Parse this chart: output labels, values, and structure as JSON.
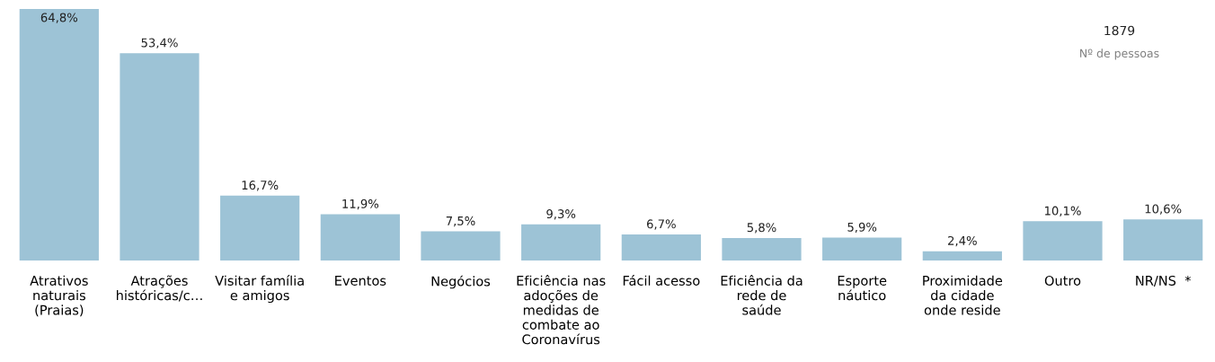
{
  "chart_data": {
    "type": "bar",
    "categories": [
      "Atrativos\nnaturais\n(Praias)",
      "Atrações\nhistóricas/c…",
      "Visitar família\ne amigos",
      "Eventos",
      "Negócios",
      "Eficiência nas\nadoções de\nmedidas de\ncombate ao\nCoronavírus",
      "Fácil acesso",
      "Eficiência da\nrede de\nsaúde",
      "Esporte\nnáutico",
      "Proximidade\nda cidade\nonde reside",
      "Outro",
      "NR/NS  *"
    ],
    "values": [
      64.8,
      53.4,
      16.7,
      11.9,
      7.5,
      9.3,
      6.7,
      5.8,
      5.9,
      2.4,
      10.1,
      10.6
    ],
    "value_labels": [
      "64,8%",
      "53,4%",
      "16,7%",
      "11,9%",
      "7,5%",
      "9,3%",
      "6,7%",
      "5,8%",
      "5,9%",
      "2,4%",
      "10,1%",
      "10,6%"
    ],
    "color": "#9dc3d6",
    "grid": false,
    "legend": false,
    "annotations": [
      "1879",
      "Nº de pessoas"
    ]
  }
}
